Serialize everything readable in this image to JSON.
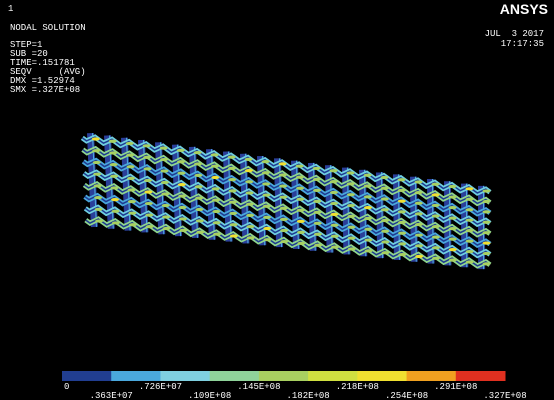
{
  "window_number": "1",
  "info": {
    "lines": [
      "NODAL SOLUTION",
      "STEP=1",
      "SUB =20",
      "TIME=.151781",
      "SEQV     (AVG)",
      "DMX =1.52974",
      "SMX =.327E+08"
    ]
  },
  "logo": "ANSYS",
  "date": "JUL  3 2017",
  "time": "17:17:35",
  "legend": {
    "labels": [
      "0",
      ".363E+07",
      ".726E+07",
      ".109E+08",
      ".145E+08",
      ".182E+08",
      ".218E+08",
      ".254E+08",
      ".291E+08",
      ".327E+08"
    ]
  }
}
